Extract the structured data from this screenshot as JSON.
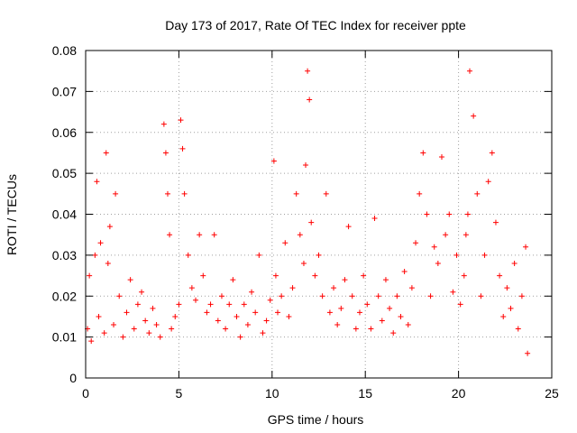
{
  "chart_data": {
    "type": "scatter",
    "title": "Day 173 of 2017, Rate Of TEC Index for receiver ppte",
    "xlabel": "GPS time / hours",
    "ylabel": "ROTI / TECUs",
    "xlim": [
      0,
      25
    ],
    "ylim": [
      0,
      0.08
    ],
    "x_ticks": [
      "0",
      "5",
      "10",
      "15",
      "20",
      "25"
    ],
    "y_ticks": [
      "0",
      "0.01",
      "0.02",
      "0.03",
      "0.04",
      "0.05",
      "0.06",
      "0.07",
      "0.08"
    ],
    "grid": true,
    "legend": "none",
    "marker": "+",
    "marker_color": "#ff0000",
    "series": [
      {
        "x": [
          0.1,
          0.2,
          0.3,
          0.5,
          0.6,
          0.7,
          0.8,
          1.0,
          1.1,
          1.2,
          1.3,
          1.5,
          1.6,
          1.8,
          2.0,
          2.2,
          2.4,
          2.6,
          2.8,
          3.0,
          3.2,
          3.4,
          3.6,
          3.8,
          4.0,
          4.2,
          4.3,
          4.4,
          4.5,
          4.6,
          4.8,
          5.0,
          5.1,
          5.2,
          5.3,
          5.5,
          5.7,
          5.9,
          6.1,
          6.3,
          6.5,
          6.7,
          6.9,
          7.1,
          7.3,
          7.5,
          7.7,
          7.9,
          8.1,
          8.3,
          8.5,
          8.7,
          8.9,
          9.1,
          9.3,
          9.5,
          9.7,
          9.9,
          10.1,
          10.2,
          10.3,
          10.5,
          10.7,
          10.9,
          11.1,
          11.3,
          11.5,
          11.7,
          11.8,
          11.9,
          12.0,
          12.1,
          12.3,
          12.5,
          12.7,
          12.9,
          13.1,
          13.3,
          13.5,
          13.7,
          13.9,
          14.1,
          14.3,
          14.5,
          14.7,
          14.9,
          15.1,
          15.3,
          15.5,
          15.7,
          15.9,
          16.1,
          16.3,
          16.5,
          16.7,
          16.9,
          17.1,
          17.3,
          17.5,
          17.7,
          17.9,
          18.1,
          18.3,
          18.5,
          18.7,
          18.9,
          19.1,
          19.3,
          19.5,
          19.7,
          19.9,
          20.1,
          20.3,
          20.4,
          20.5,
          20.6,
          20.8,
          21.0,
          21.2,
          21.4,
          21.6,
          21.8,
          22.0,
          22.2,
          22.4,
          22.6,
          22.8,
          23.0,
          23.2,
          23.4,
          23.6,
          23.7
        ],
        "y": [
          0.012,
          0.025,
          0.009,
          0.03,
          0.048,
          0.015,
          0.033,
          0.011,
          0.055,
          0.028,
          0.037,
          0.013,
          0.045,
          0.02,
          0.01,
          0.016,
          0.024,
          0.012,
          0.018,
          0.021,
          0.014,
          0.011,
          0.017,
          0.013,
          0.01,
          0.062,
          0.055,
          0.045,
          0.035,
          0.012,
          0.015,
          0.018,
          0.063,
          0.056,
          0.045,
          0.03,
          0.022,
          0.019,
          0.035,
          0.025,
          0.016,
          0.018,
          0.035,
          0.014,
          0.02,
          0.012,
          0.018,
          0.024,
          0.015,
          0.01,
          0.018,
          0.013,
          0.021,
          0.016,
          0.03,
          0.011,
          0.014,
          0.019,
          0.053,
          0.025,
          0.016,
          0.02,
          0.033,
          0.015,
          0.022,
          0.045,
          0.035,
          0.028,
          0.052,
          0.075,
          0.068,
          0.038,
          0.025,
          0.03,
          0.02,
          0.045,
          0.016,
          0.022,
          0.013,
          0.017,
          0.024,
          0.037,
          0.02,
          0.012,
          0.016,
          0.025,
          0.018,
          0.012,
          0.039,
          0.02,
          0.014,
          0.024,
          0.017,
          0.011,
          0.02,
          0.015,
          0.026,
          0.013,
          0.022,
          0.033,
          0.045,
          0.055,
          0.04,
          0.02,
          0.032,
          0.028,
          0.054,
          0.035,
          0.04,
          0.021,
          0.03,
          0.018,
          0.025,
          0.035,
          0.04,
          0.075,
          0.064,
          0.045,
          0.02,
          0.03,
          0.048,
          0.055,
          0.038,
          0.025,
          0.015,
          0.022,
          0.017,
          0.028,
          0.012,
          0.02,
          0.032,
          0.006
        ]
      }
    ]
  }
}
